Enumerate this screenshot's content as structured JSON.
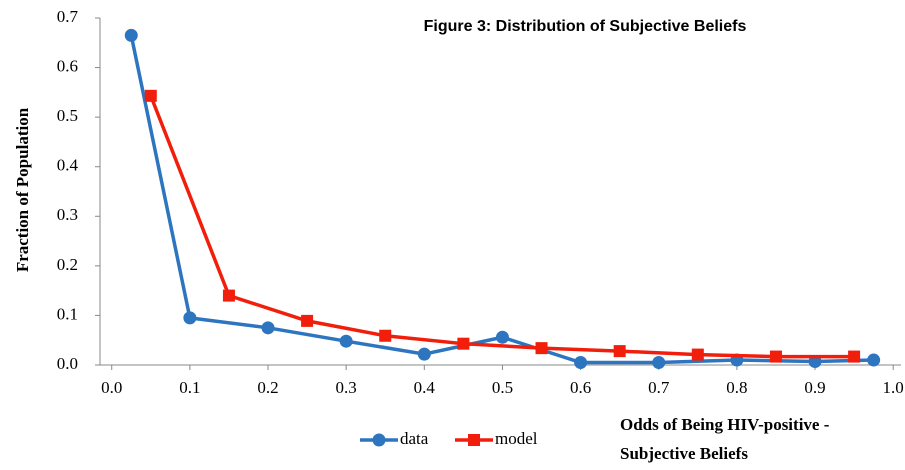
{
  "chart_data": {
    "type": "line",
    "title": "Figure 3: Distribution of Subjective Beliefs",
    "y_label": "Fraction of Population",
    "x_label": [
      "Odds of Being HIV-positive -",
      "Subjective Beliefs"
    ],
    "xlim": [
      -0.015,
      1.01
    ],
    "ylim": [
      0,
      0.7
    ],
    "xticks": [
      {
        "value": 0,
        "label": "0.0"
      },
      0.1,
      0.2,
      0.3,
      0.4,
      0.5,
      0.6,
      0.7,
      0.8,
      0.9,
      {
        "value": 1,
        "label": "1.0"
      }
    ],
    "yticks": [
      {
        "value": 0,
        "label": "0.0"
      },
      0.1,
      0.2,
      0.3,
      0.4,
      0.5,
      0.6,
      0.7
    ],
    "grid": false,
    "series": [
      {
        "name": "data",
        "color": "#2e75c0",
        "marker": "circle",
        "x": [
          0.025,
          0.1,
          0.2,
          0.3,
          0.4,
          0.5,
          0.6,
          0.7,
          0.8,
          0.9,
          0.975
        ],
        "values": [
          0.665,
          0.095,
          0.075,
          0.048,
          0.022,
          0.056,
          0.005,
          0.005,
          0.01,
          0.007,
          0.01
        ]
      },
      {
        "name": "model",
        "color": "#f21e0c",
        "marker": "square",
        "x": [
          0.05,
          0.15,
          0.25,
          0.35,
          0.45,
          0.55,
          0.65,
          0.75,
          0.85,
          0.95
        ],
        "values": [
          0.543,
          0.14,
          0.089,
          0.059,
          0.043,
          0.034,
          0.028,
          0.021,
          0.017,
          0.017
        ]
      }
    ]
  }
}
